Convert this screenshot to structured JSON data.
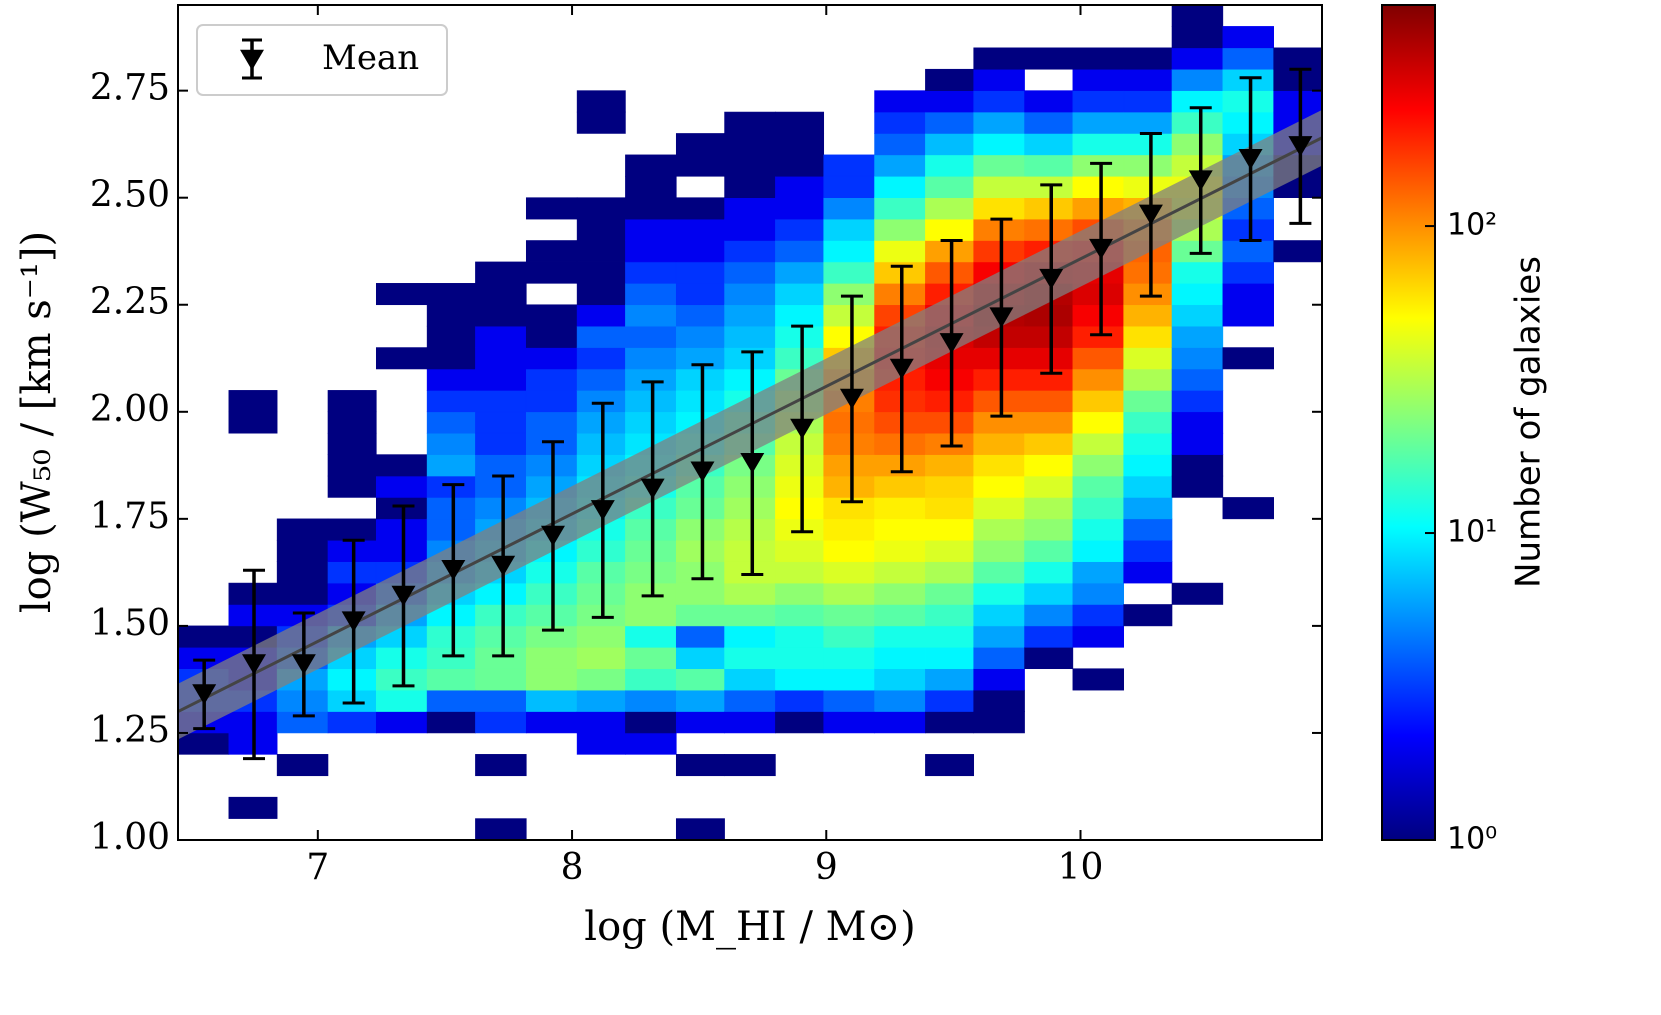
{
  "chart_data": {
    "type": "hist2d",
    "xlabel": "log (M_HI / M⊙)",
    "ylabel": "log (W₅₀ / [km s⁻¹])",
    "xlim": [
      6.45,
      10.95
    ],
    "ylim": [
      1.0,
      2.95
    ],
    "xticks": [
      7,
      8,
      9,
      10
    ],
    "yticks": [
      {
        "value": 1.0,
        "label": "1.00"
      },
      {
        "value": 1.25,
        "label": "1.25"
      },
      {
        "value": 1.5,
        "label": "1.50"
      },
      {
        "value": 1.75,
        "label": "1.75"
      },
      {
        "value": 2.0,
        "label": "2.00"
      },
      {
        "value": 2.25,
        "label": "2.25"
      },
      {
        "value": 2.5,
        "label": "2.50"
      },
      {
        "value": 2.75,
        "label": "2.75"
      }
    ],
    "grid": false,
    "legend": "upper left",
    "hist": {
      "xbins": [
        6.45,
        6.65,
        6.84,
        7.04,
        7.23,
        7.43,
        7.62,
        7.82,
        8.02,
        8.21,
        8.41,
        8.6,
        8.8,
        8.99,
        9.19,
        9.39,
        9.58,
        9.78,
        9.97,
        10.17,
        10.36,
        10.56,
        10.76,
        10.95
      ],
      "ybins": [
        1.0,
        1.05,
        1.1,
        1.15,
        1.2,
        1.25,
        1.3,
        1.35,
        1.4,
        1.45,
        1.5,
        1.55,
        1.6,
        1.65,
        1.7,
        1.75,
        1.8,
        1.85,
        1.9,
        1.95,
        2.0,
        2.05,
        2.1,
        2.15,
        2.2,
        2.25,
        2.3,
        2.35,
        2.4,
        2.45,
        2.5,
        2.55,
        2.6,
        2.65,
        2.7,
        2.75,
        2.8,
        2.85,
        2.9,
        2.95
      ],
      "counts": [
        [
          null,
          null,
          null,
          null,
          1,
          2,
          3,
          3,
          2,
          1,
          null,
          null,
          null,
          null,
          null,
          null,
          null,
          null,
          null,
          null,
          null,
          null,
          null,
          null,
          null,
          null,
          null,
          null,
          null,
          null,
          null,
          null,
          null,
          null,
          null,
          null,
          null,
          null,
          null
        ],
        [
          null,
          1,
          null,
          null,
          2,
          2,
          3,
          2,
          2,
          1,
          2,
          1,
          null,
          null,
          null,
          null,
          null,
          null,
          null,
          1,
          1,
          null,
          null,
          null,
          null,
          null,
          null,
          null,
          null,
          null,
          null,
          null,
          null,
          null,
          null,
          null,
          null,
          null,
          null
        ],
        [
          null,
          null,
          null,
          1,
          null,
          4,
          5,
          6,
          4,
          3,
          2,
          1,
          1,
          1,
          1,
          null,
          null,
          null,
          null,
          null,
          null,
          null,
          null,
          null,
          null,
          null,
          null,
          null,
          null,
          null,
          null,
          null,
          null,
          null,
          null,
          null,
          null,
          null,
          null
        ],
        [
          null,
          null,
          null,
          null,
          null,
          3,
          8,
          10,
          8,
          6,
          3,
          2,
          3,
          2,
          1,
          null,
          1,
          1,
          1,
          1,
          1,
          null,
          null,
          null,
          null,
          null,
          null,
          null,
          null,
          null,
          null,
          null,
          null,
          null,
          null,
          null,
          null,
          null,
          null
        ],
        [
          null,
          null,
          null,
          null,
          null,
          2,
          12,
          15,
          12,
          8,
          6,
          4,
          3,
          2,
          2,
          1,
          2,
          1,
          null,
          null,
          null,
          null,
          1,
          null,
          null,
          1,
          null,
          null,
          null,
          null,
          null,
          null,
          null,
          null,
          null,
          null,
          null,
          null,
          null
        ],
        [
          null,
          null,
          null,
          null,
          null,
          1,
          4,
          18,
          15,
          14,
          10,
          8,
          6,
          5,
          4,
          4,
          3,
          6,
          5,
          4,
          3,
          2,
          1,
          1,
          1,
          1,
          null,
          null,
          null,
          null,
          null,
          null,
          null,
          null,
          null,
          null,
          null,
          null,
          null
        ],
        [
          1,
          null,
          null,
          1,
          null,
          3,
          4,
          20,
          20,
          18,
          15,
          10,
          8,
          7,
          6,
          5,
          4,
          4,
          3,
          3,
          3,
          2,
          2,
          2,
          1,
          1,
          1,
          null,
          null,
          null,
          null,
          null,
          null,
          null,
          null,
          null,
          null,
          null,
          null
        ],
        [
          null,
          null,
          null,
          null,
          null,
          2,
          7,
          25,
          25,
          22,
          18,
          15,
          12,
          10,
          8,
          7,
          6,
          5,
          4,
          4,
          3,
          3,
          2,
          1,
          1,
          null,
          1,
          1,
          null,
          1,
          null,
          null,
          null,
          null,
          null,
          null,
          null,
          null,
          null
        ],
        [
          null,
          null,
          null,
          null,
          2,
          2,
          6,
          22,
          28,
          25,
          22,
          20,
          18,
          14,
          12,
          10,
          9,
          8,
          7,
          6,
          5,
          4,
          3,
          4,
          2,
          1,
          1,
          1,
          1,
          1,
          null,
          null,
          null,
          1,
          1,
          null,
          null,
          null,
          null
        ],
        [
          null,
          null,
          null,
          null,
          2,
          1,
          5,
          15,
          20,
          12,
          25,
          25,
          22,
          20,
          18,
          15,
          12,
          10,
          9,
          8,
          7,
          6,
          5,
          4,
          5,
          4,
          3,
          2,
          2,
          1,
          1,
          1,
          null,
          null,
          null,
          null,
          null,
          null,
          null
        ],
        [
          1,
          null,
          null,
          1,
          null,
          2,
          6,
          18,
          8,
          4,
          20,
          25,
          25,
          28,
          25,
          20,
          18,
          15,
          12,
          10,
          9,
          8,
          6,
          5,
          4,
          3,
          3,
          2,
          2,
          1,
          null,
          1,
          1,
          null,
          null,
          null,
          null,
          null,
          null
        ],
        [
          null,
          null,
          null,
          1,
          null,
          2,
          4,
          8,
          12,
          10,
          20,
          30,
          35,
          35,
          32,
          28,
          25,
          22,
          18,
          15,
          12,
          10,
          8,
          7,
          6,
          5,
          4,
          3,
          2,
          2,
          1,
          1,
          1,
          1,
          null,
          null,
          null,
          null,
          null
        ],
        [
          null,
          null,
          null,
          null,
          null,
          1,
          3,
          10,
          12,
          12,
          18,
          25,
          35,
          40,
          45,
          50,
          45,
          40,
          35,
          30,
          25,
          20,
          15,
          12,
          10,
          8,
          6,
          4,
          3,
          2,
          2,
          1,
          1,
          1,
          null,
          null,
          null,
          null,
          null
        ],
        [
          null,
          null,
          null,
          null,
          null,
          2,
          4,
          10,
          12,
          15,
          20,
          30,
          40,
          50,
          55,
          60,
          80,
          90,
          110,
          120,
          110,
          90,
          70,
          50,
          35,
          25,
          15,
          10,
          8,
          5,
          3,
          3,
          null,
          null,
          null,
          null,
          null,
          null,
          null
        ],
        [
          null,
          null,
          null,
          null,
          null,
          2,
          5,
          8,
          10,
          12,
          18,
          25,
          35,
          45,
          50,
          55,
          70,
          90,
          120,
          150,
          180,
          200,
          220,
          200,
          160,
          110,
          70,
          45,
          25,
          15,
          10,
          6,
          4,
          3,
          2,
          null,
          null,
          null,
          null
        ],
        [
          null,
          null,
          null,
          1,
          null,
          1,
          3,
          6,
          10,
          12,
          15,
          20,
          30,
          40,
          50,
          60,
          65,
          80,
          110,
          150,
          200,
          250,
          280,
          300,
          260,
          200,
          140,
          90,
          50,
          30,
          18,
          12,
          7,
          4,
          2,
          1,
          null,
          null,
          null
        ],
        [
          null,
          null,
          null,
          null,
          null,
          1,
          1,
          2,
          4,
          6,
          8,
          12,
          18,
          25,
          30,
          40,
          50,
          60,
          80,
          100,
          140,
          200,
          280,
          350,
          380,
          330,
          250,
          170,
          110,
          60,
          35,
          20,
          10,
          6,
          3,
          2,
          1,
          null,
          null
        ],
        [
          null,
          null,
          null,
          null,
          null,
          null,
          null,
          null,
          1,
          3,
          5,
          8,
          12,
          18,
          25,
          30,
          40,
          50,
          70,
          100,
          140,
          200,
          280,
          350,
          400,
          380,
          300,
          200,
          120,
          70,
          35,
          18,
          8,
          4,
          2,
          null,
          1,
          null,
          null
        ],
        [
          null,
          null,
          null,
          null,
          null,
          null,
          null,
          1,
          null,
          2,
          3,
          5,
          6,
          10,
          12,
          15,
          18,
          25,
          35,
          50,
          70,
          100,
          140,
          200,
          250,
          300,
          280,
          220,
          150,
          90,
          50,
          25,
          12,
          6,
          3,
          2,
          1,
          null,
          null
        ],
        [
          null,
          null,
          null,
          null,
          null,
          null,
          null,
          null,
          null,
          null,
          1,
          null,
          2,
          3,
          4,
          6,
          8,
          10,
          12,
          15,
          20,
          30,
          40,
          60,
          80,
          100,
          120,
          130,
          110,
          80,
          45,
          25,
          12,
          6,
          3,
          2,
          1,
          null,
          null
        ],
        [
          null,
          null,
          null,
          null,
          null,
          null,
          null,
          null,
          null,
          null,
          null,
          1,
          null,
          null,
          null,
          null,
          1,
          1,
          2,
          2,
          3,
          4,
          5,
          6,
          8,
          10,
          12,
          20,
          30,
          40,
          45,
          35,
          25,
          15,
          10,
          5,
          2,
          1,
          1
        ],
        [
          null,
          null,
          null,
          null,
          null,
          null,
          null,
          null,
          null,
          null,
          null,
          null,
          null,
          null,
          null,
          1,
          null,
          null,
          null,
          null,
          null,
          null,
          1,
          null,
          2,
          2,
          3,
          4,
          3,
          4,
          5,
          6,
          8,
          10,
          12,
          8,
          4,
          2,
          null
        ],
        [
          null,
          null,
          null,
          null,
          null,
          null,
          null,
          null,
          null,
          null,
          null,
          null,
          null,
          null,
          null,
          null,
          null,
          null,
          null,
          null,
          null,
          null,
          null,
          null,
          null,
          null,
          null,
          1,
          null,
          null,
          1,
          1,
          2,
          2,
          2,
          1,
          1,
          null,
          null
        ]
      ]
    },
    "fit": {
      "x": [
        6.45,
        10.95
      ],
      "y": [
        1.3,
        2.64
      ],
      "band": 0.065,
      "color": "#444444",
      "band_color": "#808080"
    },
    "series": [
      {
        "name": "Mean",
        "color": "#000000",
        "x": [
          6.553,
          6.749,
          6.945,
          7.141,
          7.337,
          7.533,
          7.729,
          7.925,
          8.121,
          8.317,
          8.513,
          8.709,
          8.905,
          9.101,
          9.297,
          9.493,
          9.689,
          9.885,
          10.081,
          10.277,
          10.473,
          10.669,
          10.865
        ],
        "values": [
          1.34,
          1.41,
          1.41,
          1.51,
          1.57,
          1.63,
          1.64,
          1.71,
          1.77,
          1.82,
          1.86,
          1.88,
          1.96,
          2.03,
          2.1,
          2.16,
          2.22,
          2.31,
          2.38,
          2.46,
          2.54,
          2.59,
          2.62
        ],
        "errors": [
          0.08,
          0.22,
          0.12,
          0.19,
          0.21,
          0.2,
          0.21,
          0.22,
          0.25,
          0.25,
          0.25,
          0.26,
          0.24,
          0.24,
          0.24,
          0.24,
          0.23,
          0.22,
          0.2,
          0.19,
          0.17,
          0.19,
          0.18
        ]
      }
    ],
    "colorbar": {
      "label": "Number of galaxies",
      "log": true,
      "colormap": "jet",
      "clim": [
        1,
        525
      ],
      "ticks": [
        {
          "value": 1,
          "label": "10⁰"
        },
        {
          "value": 10,
          "label": "10¹"
        },
        {
          "value": 100,
          "label": "10²"
        }
      ]
    }
  }
}
